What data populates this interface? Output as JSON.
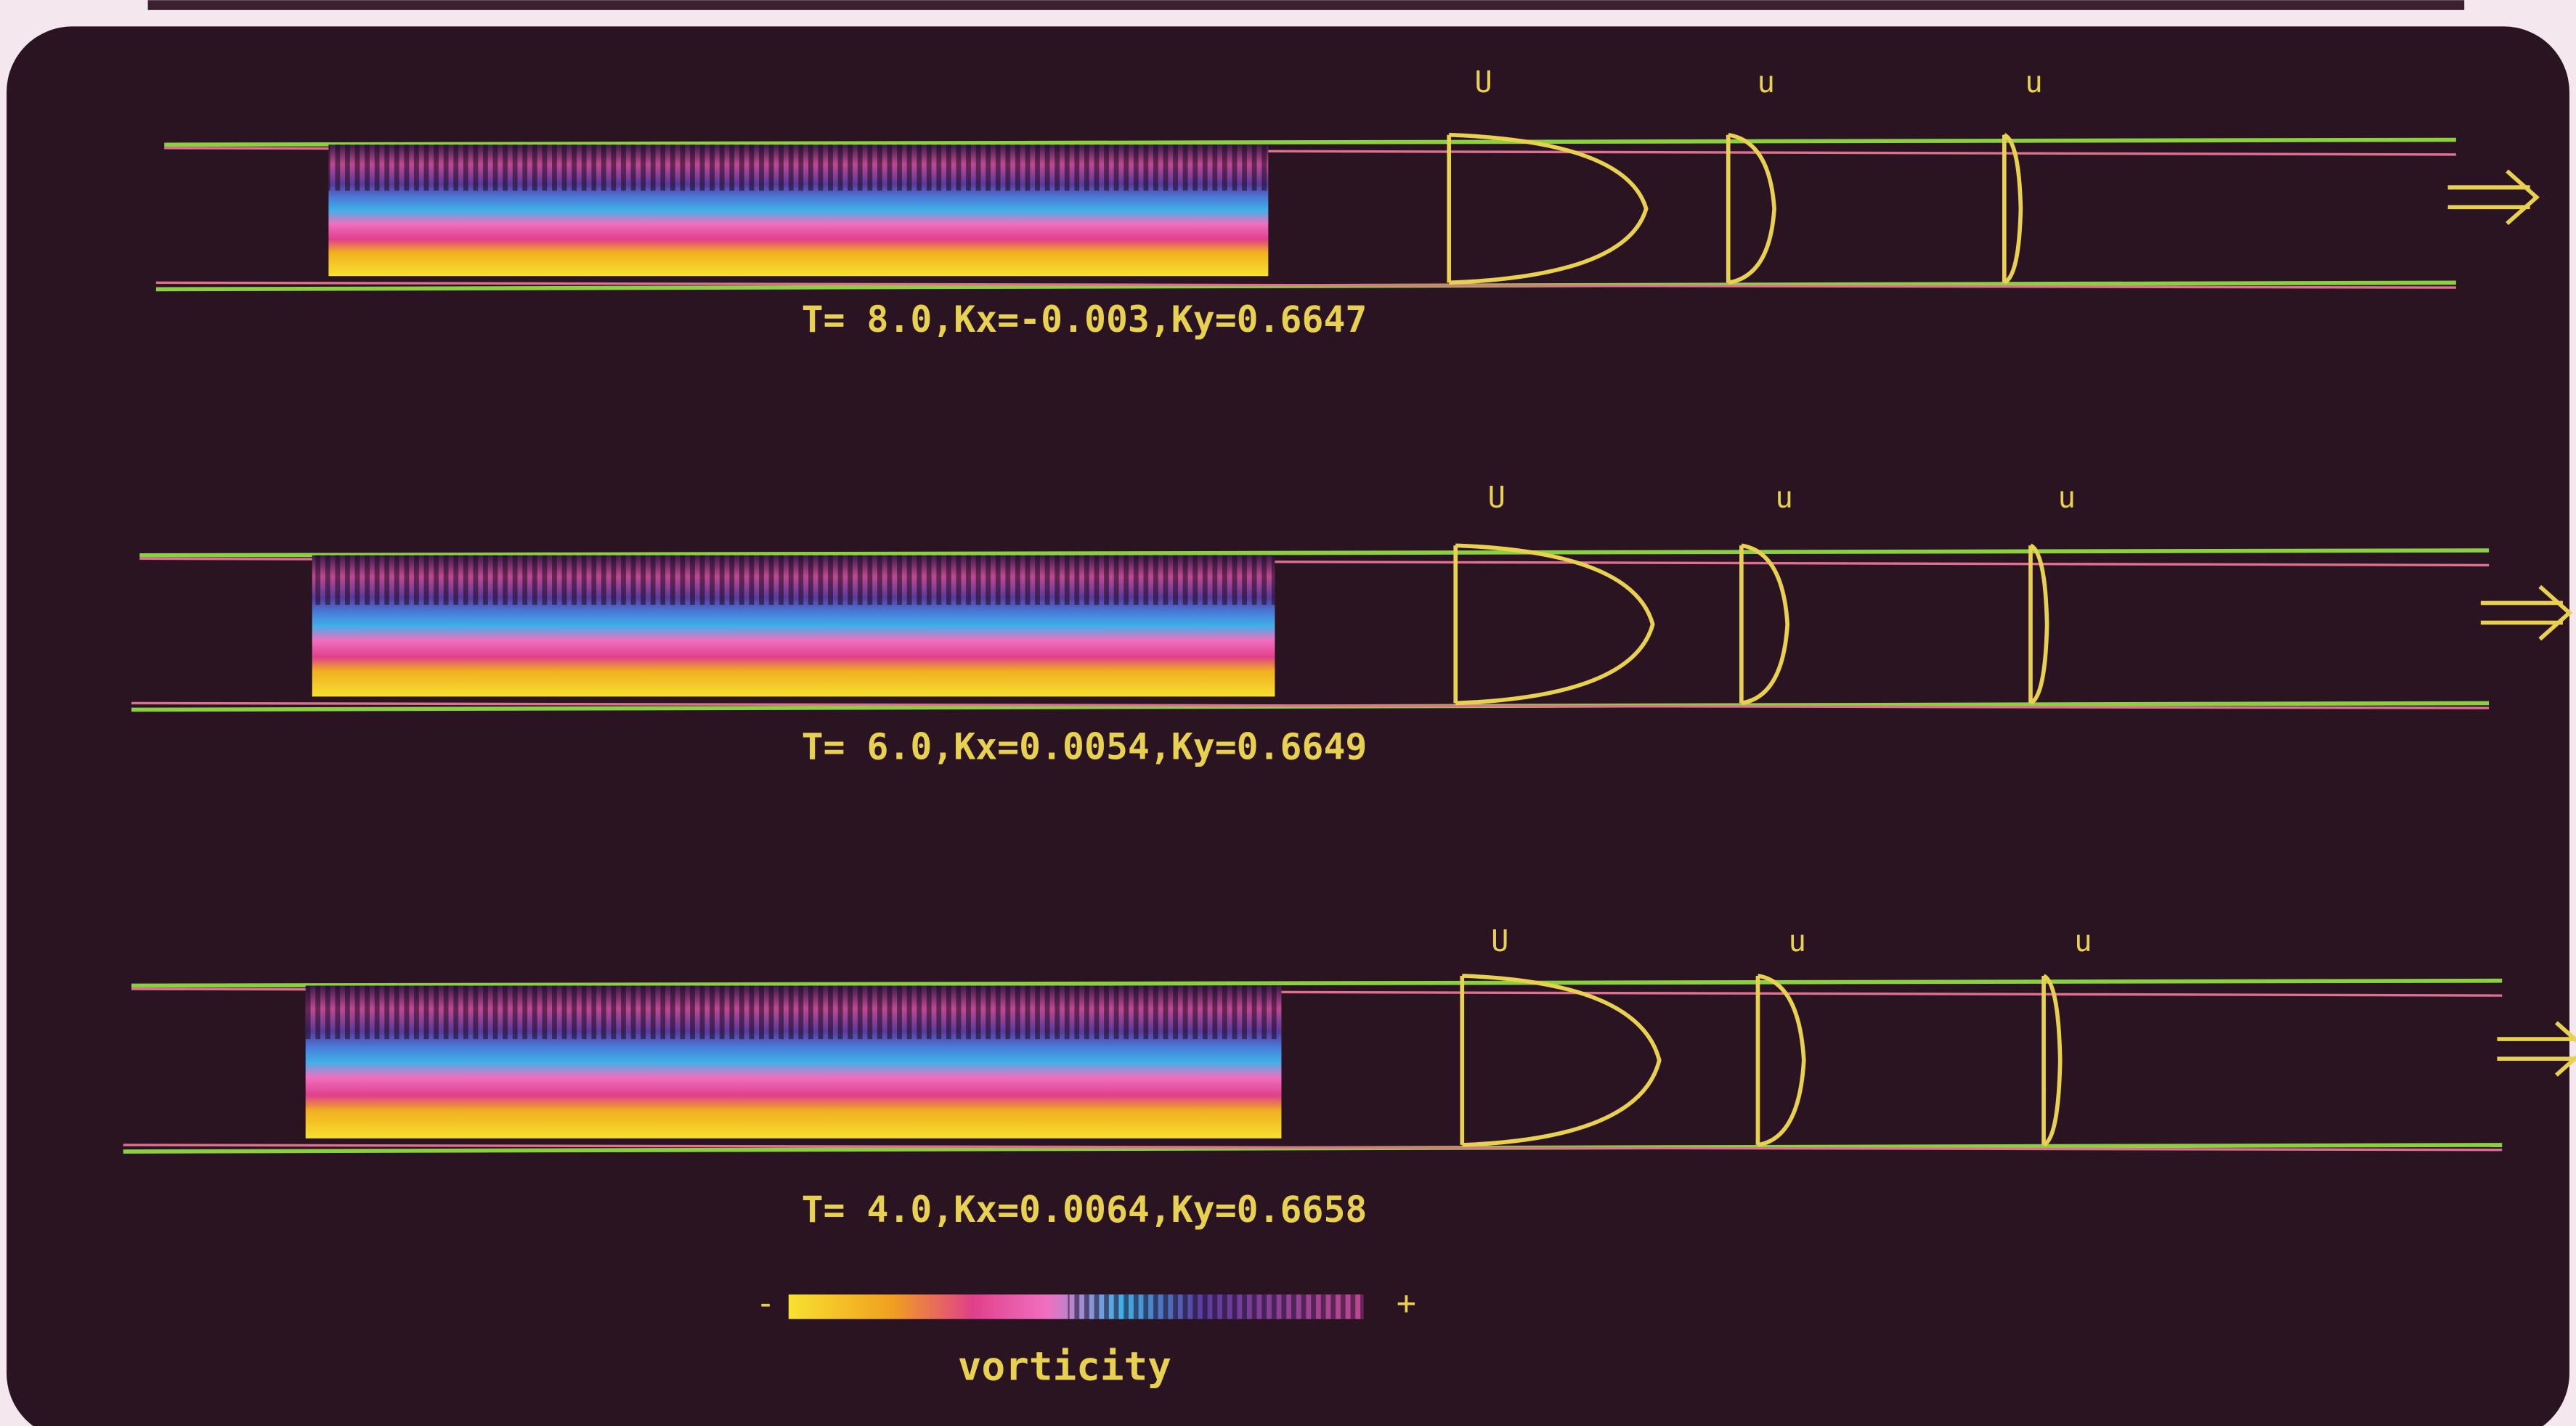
{
  "panels": [
    {
      "caption": "T= 8.0,Kx=-0.003,Ky=0.6647",
      "profile_labels": [
        "U",
        "u",
        "u"
      ]
    },
    {
      "caption": "T= 6.0,Kx=0.0054,Ky=0.6649",
      "profile_labels": [
        "U",
        "u",
        "u"
      ]
    },
    {
      "caption": "T= 4.0,Kx=0.0064,Ky=0.6658",
      "profile_labels": [
        "U",
        "u",
        "u"
      ]
    }
  ],
  "colorbar": {
    "min_label": "-",
    "max_label": "+",
    "title": "vorticity"
  }
}
